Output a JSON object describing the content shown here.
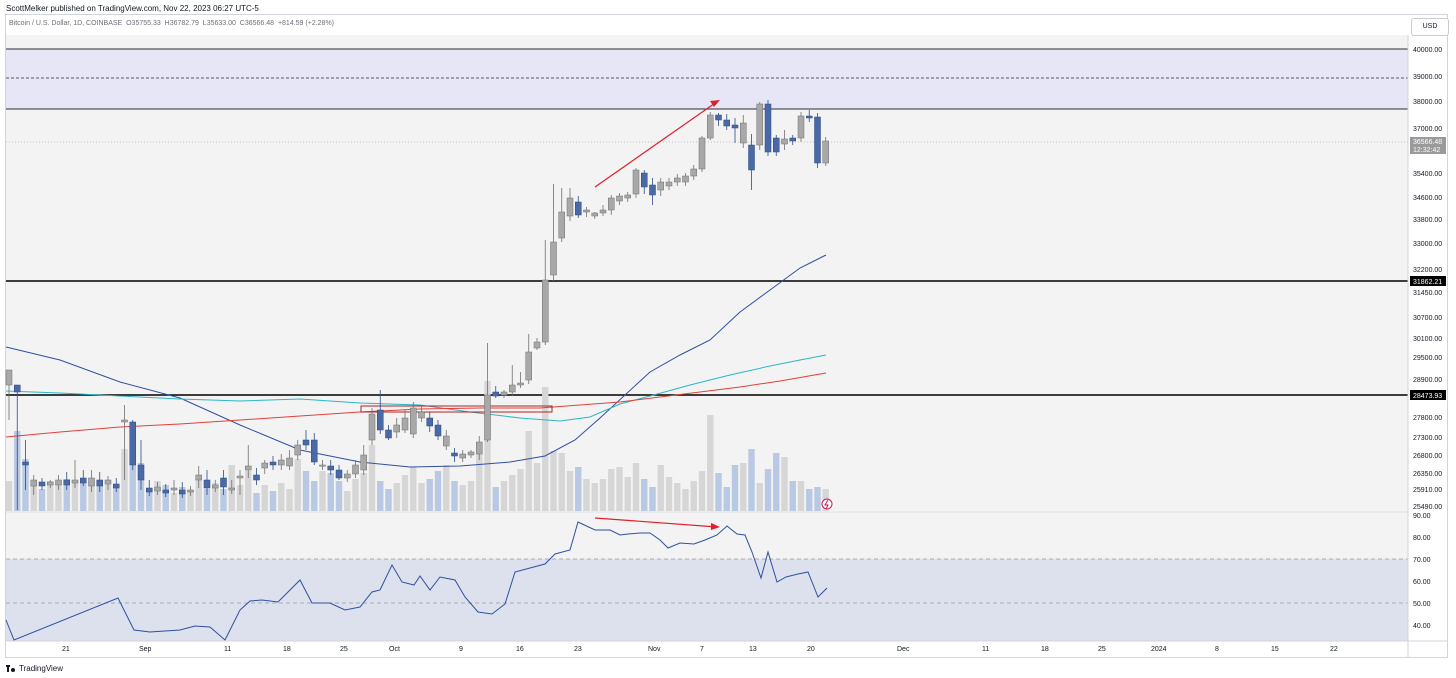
{
  "header": {
    "published": "ScottMelker published on TradingView.com, Nov 22, 2023 06:27 UTC-5",
    "symbol": "Bitcoin / U.S. Dollar, 1D, COINBASE",
    "open_label": "O",
    "open": "35755.33",
    "high_label": "H",
    "high": "36782.79",
    "low_label": "L",
    "low": "35633.00",
    "close_label": "C",
    "close": "36566.48",
    "change": "+814.59 (+2.28%)",
    "currency": "USD"
  },
  "colors": {
    "up_candle": "#a8a8a8",
    "down_candle": "#4a6aa5",
    "ma_fast": "#2f4fa0",
    "ma_teal": "#2bb7c4",
    "ma_red": "#e0413a",
    "resistance_zone": "#e6e6f6",
    "rsi_band": "#dde1ed",
    "annotation_red": "#e0202a",
    "background": "#f3f3f3"
  },
  "price_axis": {
    "ticks": [
      "40000.00",
      "39000.00",
      "38000.00",
      "37000.00",
      "36566.48",
      "35400.00",
      "34600.00",
      "33800.00",
      "33000.00",
      "32200.00",
      "31862.21",
      "31450.00",
      "30700.00",
      "30100.00",
      "29500.00",
      "28900.00",
      "28473.93",
      "27800.00",
      "27300.00",
      "26800.00",
      "26350.00",
      "25910.00",
      "25490.00"
    ],
    "current_price": "36566.48",
    "countdown": "12:32:42",
    "level_upper": "31862.21",
    "level_lower": "28473.93"
  },
  "rsi_axis": {
    "ticks": [
      "90.00",
      "80.00",
      "70.00",
      "60.00",
      "50.00",
      "40.00"
    ]
  },
  "time_axis": {
    "labels": [
      "21",
      "Sep",
      "11",
      "18",
      "25",
      "Oct",
      "9",
      "16",
      "23",
      "Nov",
      "7",
      "13",
      "20",
      "Dec",
      "11",
      "18",
      "25",
      "2024",
      "8",
      "15",
      "22"
    ]
  },
  "footer": {
    "brand": "TradingView"
  }
}
